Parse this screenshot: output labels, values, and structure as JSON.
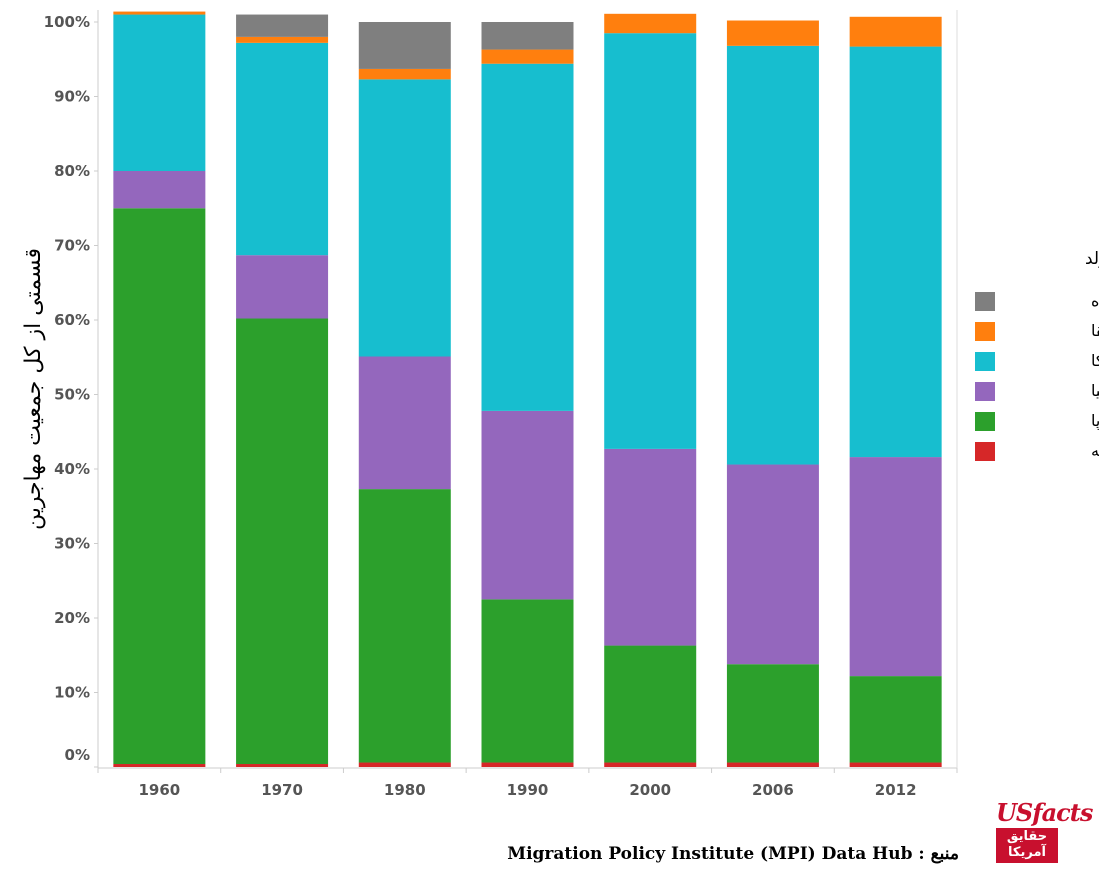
{
  "chart_data": {
    "type": "bar",
    "stacked": true,
    "categories": [
      "1960",
      "1970",
      "1980",
      "1990",
      "2000",
      "2006",
      "2012"
    ],
    "series": [
      {
        "name": "اقیانوسیه",
        "color": "#d62728",
        "values": [
          0.4,
          0.4,
          0.6,
          0.6,
          0.6,
          0.6,
          0.6
        ]
      },
      {
        "name": "اروپا",
        "color": "#2ca02c",
        "values": [
          74.6,
          59.8,
          36.7,
          21.9,
          15.7,
          13.2,
          11.6
        ]
      },
      {
        "name": "آسیا",
        "color": "#9467bd",
        "values": [
          5.0,
          8.5,
          17.8,
          25.3,
          26.4,
          26.8,
          29.4
        ]
      },
      {
        "name": "آمریکا",
        "color": "#17becf",
        "values": [
          21.0,
          28.5,
          37.2,
          46.6,
          55.8,
          56.2,
          55.1
        ]
      },
      {
        "name": "آفریقا",
        "color": "#ff7f0e",
        "values": [
          0.4,
          0.8,
          1.4,
          1.9,
          2.6,
          3.4,
          4.0
        ]
      },
      {
        "name": "گزارش نشده",
        "color": "#7f7f7f",
        "values": [
          0.0,
          3.0,
          6.3,
          3.7,
          0.0,
          0.0,
          0.0
        ]
      }
    ],
    "yticks": [
      "0%",
      "10%",
      "20%",
      "30%",
      "40%",
      "50%",
      "60%",
      "70%",
      "80%",
      "90%",
      "100%"
    ],
    "ylim": [
      0,
      100
    ],
    "ylabel": "قسمتی از کل جمعیت مهاجرین",
    "xlabel": "",
    "legend_title": "محل تولد",
    "legend_position": "right",
    "legend_order": [
      "گزارش نشده",
      "آفریقا",
      "آمریکا",
      "آسیا",
      "اروپا",
      "اقیانوسیه"
    ],
    "grid": false
  },
  "source": "Migration Policy Institute (MPI) Data Hub : منبع",
  "logo": {
    "top": "USfacts",
    "bottom": "حقایق آمریکا"
  }
}
